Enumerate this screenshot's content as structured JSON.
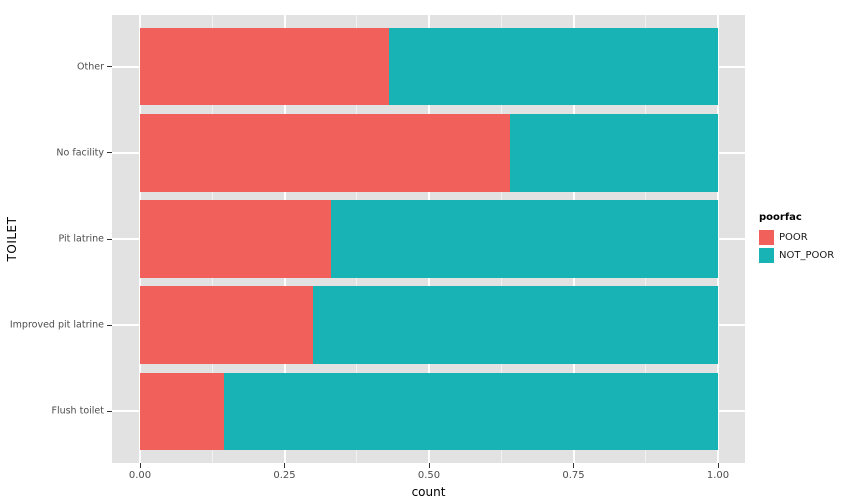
{
  "chart_data": {
    "type": "bar",
    "orientation": "horizontal",
    "stacked": true,
    "normalized": true,
    "title": "",
    "xlabel": "count",
    "ylabel": "TOILET",
    "categories": [
      "Other",
      "No facility",
      "Pit latrine",
      "Improved pit latrine",
      "Flush toilet"
    ],
    "series": [
      {
        "name": "POOR",
        "color": "#F2605B",
        "values": [
          0.43,
          0.64,
          0.33,
          0.3,
          0.145
        ]
      },
      {
        "name": "NOT_POOR",
        "color": "#17B3B5",
        "values": [
          0.57,
          0.36,
          0.67,
          0.7,
          0.855
        ]
      }
    ],
    "xlim": [
      0,
      1
    ],
    "x_ticks": [
      {
        "value": 0.0,
        "label": "0.00"
      },
      {
        "value": 0.25,
        "label": "0.25"
      },
      {
        "value": 0.5,
        "label": "0.50"
      },
      {
        "value": 0.75,
        "label": "0.75"
      },
      {
        "value": 1.0,
        "label": "1.00"
      }
    ],
    "legend": {
      "title": "poorfac",
      "position": "right"
    },
    "grid": {
      "major": true,
      "minor": true,
      "color": "#FFFFFF"
    },
    "panel_background": "#E2E2E2"
  }
}
